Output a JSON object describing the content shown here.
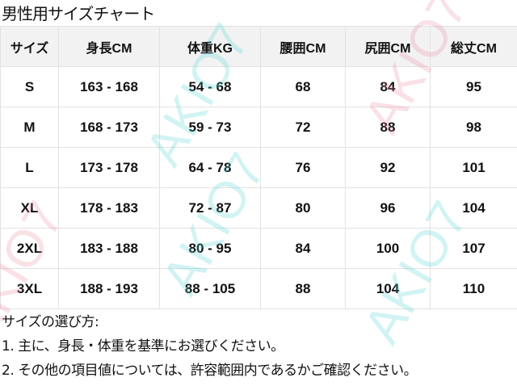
{
  "title": "男性用サイズチャート",
  "table": {
    "headers": [
      "サイズ",
      "身長CM",
      "体重KG",
      "腰囲CM",
      "尻囲CM",
      "総丈CM"
    ],
    "rows": [
      [
        "S",
        "163 - 168",
        "54 - 68",
        "68",
        "84",
        "95"
      ],
      [
        "M",
        "168 - 173",
        "59 - 73",
        "72",
        "88",
        "98"
      ],
      [
        "L",
        "173 - 178",
        "64 - 78",
        "76",
        "92",
        "101"
      ],
      [
        "XL",
        "178 - 183",
        "72 - 87",
        "80",
        "96",
        "104"
      ],
      [
        "2XL",
        "183 - 188",
        "80 - 95",
        "84",
        "100",
        "107"
      ],
      [
        "3XL",
        "188 - 193",
        "88 - 105",
        "88",
        "104",
        "110"
      ]
    ]
  },
  "howto": {
    "heading": "サイズの選び方:",
    "items": [
      "1.  主に、身長・体重を基準にお選びください。",
      "2.  その他の項目値については、許容範囲内であるかご確認ください。"
    ]
  },
  "watermark": {
    "text": "AKIO7",
    "colors": [
      "#4fd3d3",
      "#e88aa0"
    ]
  }
}
